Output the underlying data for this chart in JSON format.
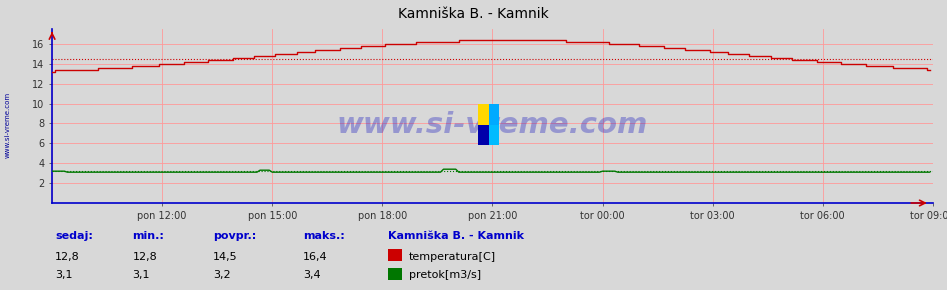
{
  "title": "Kamniška B. - Kamnik",
  "bg_color": "#d8d8d8",
  "plot_bg_color": "#d8d8d8",
  "grid_color": "#ff9999",
  "xticklabels": [
    "pon 12:00",
    "pon 15:00",
    "pon 18:00",
    "pon 21:00",
    "tor 00:00",
    "tor 03:00",
    "tor 06:00",
    "tor 09:00"
  ],
  "yticks": [
    2,
    4,
    6,
    8,
    10,
    12,
    14,
    16
  ],
  "ylim": [
    0,
    17.5
  ],
  "xlim": [
    0,
    287
  ],
  "temp_color": "#cc0000",
  "pretok_color": "#007700",
  "watermark": "www.si-vreme.com",
  "watermark_color": "#0000bb",
  "watermark_alpha": 0.3,
  "left_label_text": "www.si-vreme.com",
  "left_label_color": "#000099",
  "footer_label_color": "#0000cc",
  "sedaj_label": "sedaj:",
  "min_label": "min.:",
  "povpr_label": "povpr.:",
  "maks_label": "maks.:",
  "station_label": "Kamniška B. - Kamnik",
  "temp_label": "temperatura[C]",
  "pretok_label": "pretok[m3/s]",
  "sedaj_temp": "12,8",
  "min_temp": "12,8",
  "povpr_temp": "14,5",
  "maks_temp": "16,4",
  "sedaj_pretok": "3,1",
  "min_pretok": "3,1",
  "povpr_pretok": "3,2",
  "maks_pretok": "3,4",
  "n_points": 288,
  "temp_start": 12.8,
  "temp_peak": 16.4,
  "temp_avg_val": 14.5,
  "pretok_base": 3.1,
  "pretok_avg_val": 3.2,
  "spine_color": "#0000cc",
  "tick_color": "#333333",
  "logo_colors": [
    "#FFD700",
    "#00AAFF",
    "#0000AA",
    "#00BBFF"
  ]
}
